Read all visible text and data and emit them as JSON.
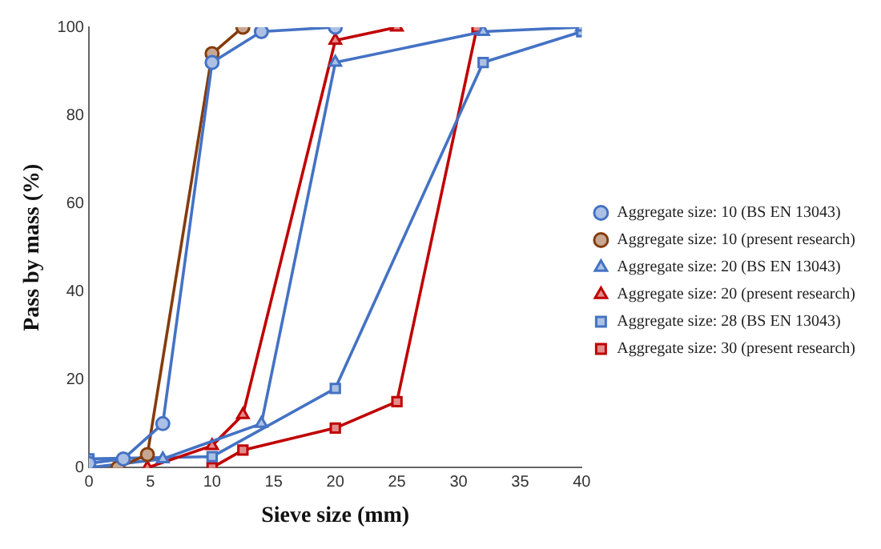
{
  "chart_data": {
    "type": "line",
    "xlabel": "Sieve size (mm)",
    "ylabel": "Pass by mass (%)",
    "xlim": [
      0,
      40
    ],
    "xticks": [
      0,
      5,
      10,
      15,
      20,
      25,
      30,
      35,
      40
    ],
    "ylim": [
      0,
      100
    ],
    "yticks": [
      0,
      20,
      40,
      60,
      80,
      100
    ],
    "grid": false,
    "legend": "right",
    "line_style": "solid",
    "series": [
      {
        "name": "Aggregate size: 10 (BS EN 13043)",
        "color": "#4472c4",
        "marker": "circle",
        "x": [
          0,
          2.8,
          6,
          10,
          14,
          20
        ],
        "values": [
          1,
          2,
          10,
          92,
          99,
          100
        ]
      },
      {
        "name": "Aggregate size: 10 (present research)",
        "color": "#843c0c",
        "marker": "circle",
        "x": [
          2.36,
          4.75,
          10,
          12.5
        ],
        "values": [
          0,
          3,
          94,
          100
        ]
      },
      {
        "name": "Aggregate size: 20 (BS EN 13043)",
        "color": "#4472c4",
        "marker": "triangle",
        "x": [
          0,
          6,
          14,
          20,
          32,
          40
        ],
        "values": [
          0,
          2,
          10,
          92,
          99,
          100
        ]
      },
      {
        "name": "Aggregate size: 20 (present research)",
        "color": "#c00000",
        "marker": "triangle",
        "x": [
          4.75,
          10,
          12.5,
          20,
          25
        ],
        "values": [
          0,
          5,
          12,
          97,
          100
        ]
      },
      {
        "name": "Aggregate size: 28 (BS EN 13043)",
        "color": "#4472c4",
        "marker": "square",
        "x": [
          0,
          10,
          20,
          32,
          40
        ],
        "values": [
          2,
          2.5,
          18,
          92,
          99
        ]
      },
      {
        "name": "Aggregate size: 30 (present research)",
        "color": "#c00000",
        "marker": "square",
        "x": [
          10,
          12.5,
          20,
          25,
          31.5
        ],
        "values": [
          0,
          4,
          9,
          15,
          100
        ]
      }
    ]
  }
}
